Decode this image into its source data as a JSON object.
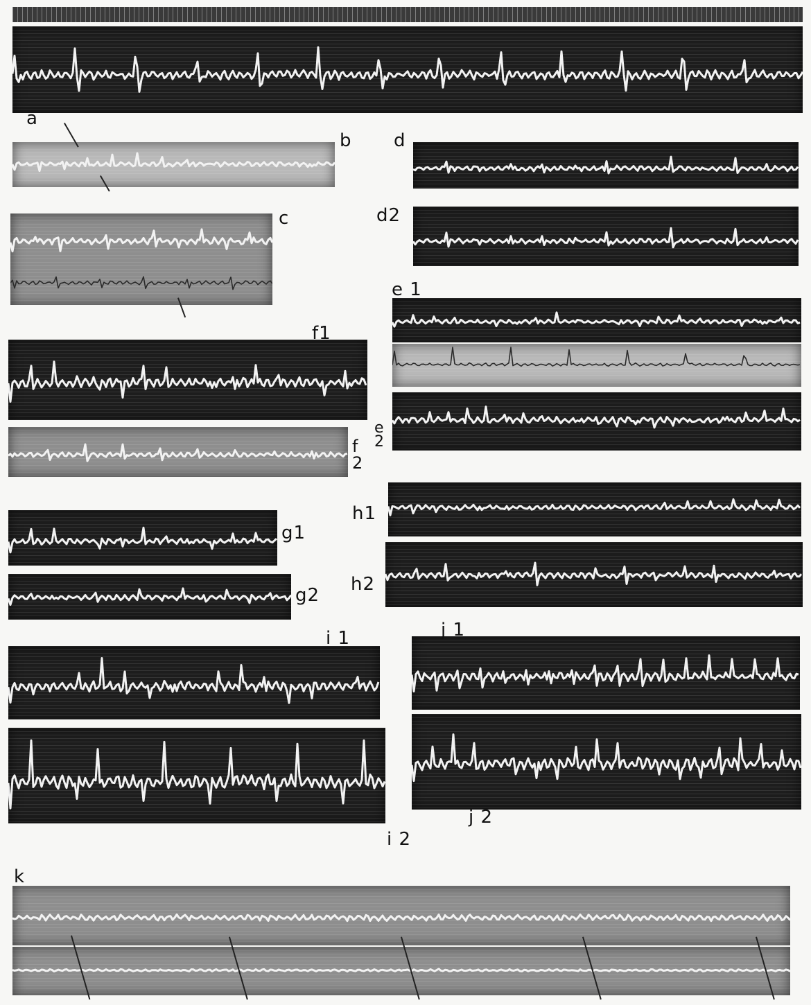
{
  "labels": {
    "a": "a",
    "b": "b",
    "c": "c",
    "d": "d",
    "d2": "d2",
    "e1": "e 1",
    "e2": "e 2",
    "f1": "f1",
    "f2": "f 2",
    "g1": "g1",
    "g2": "g2",
    "h1": "h1",
    "h2": "h2",
    "i1": "i 1",
    "i2": "i 2",
    "j1": "j 1",
    "j2": "j 2",
    "k": "k"
  },
  "colors": {
    "paper": "#f7f7f5",
    "strip_dark": "#1d1d1d",
    "trace": "#f2f2f2",
    "trace_dark": "#2a2a2a"
  }
}
